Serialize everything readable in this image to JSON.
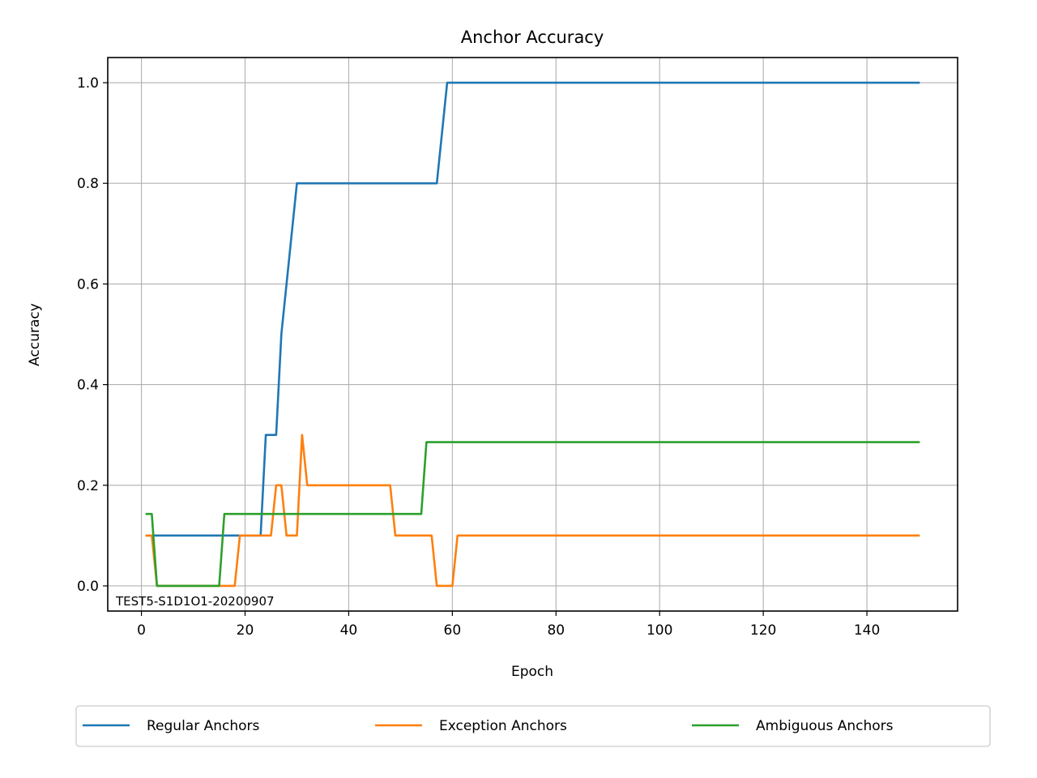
{
  "chart_data": {
    "type": "line",
    "title": "Anchor Accuracy",
    "xlabel": "Epoch",
    "ylabel": "Accuracy",
    "xlim": [
      -6.5,
      157.5
    ],
    "ylim": [
      -0.05,
      1.05
    ],
    "xticks": [
      0,
      20,
      40,
      60,
      80,
      100,
      120,
      140
    ],
    "yticks": [
      0.0,
      0.2,
      0.4,
      0.6,
      0.8,
      1.0
    ],
    "ytick_labels": [
      "0.0",
      "0.2",
      "0.4",
      "0.6",
      "0.8",
      "1.0"
    ],
    "grid": true,
    "legend_position": "below",
    "annotation": "TEST5-S1D1O1-20200907",
    "series": [
      {
        "name": "Regular Anchors",
        "color": "#1f77b4",
        "points": [
          [
            1,
            0.1
          ],
          [
            2,
            0.1
          ],
          [
            23,
            0.1
          ],
          [
            24,
            0.3
          ],
          [
            26,
            0.3
          ],
          [
            27,
            0.5
          ],
          [
            30,
            0.8
          ],
          [
            57,
            0.8
          ],
          [
            59,
            1.0
          ],
          [
            150,
            1.0
          ]
        ]
      },
      {
        "name": "Exception Anchors",
        "color": "#ff7f0e",
        "points": [
          [
            1,
            0.1
          ],
          [
            2,
            0.1
          ],
          [
            3,
            0.0
          ],
          [
            18,
            0.0
          ],
          [
            19,
            0.1
          ],
          [
            25,
            0.1
          ],
          [
            26,
            0.2
          ],
          [
            27,
            0.2
          ],
          [
            28,
            0.1
          ],
          [
            30,
            0.1
          ],
          [
            31,
            0.3
          ],
          [
            32,
            0.2
          ],
          [
            48,
            0.2
          ],
          [
            49,
            0.1
          ],
          [
            56,
            0.1
          ],
          [
            57,
            0.0
          ],
          [
            60,
            0.0
          ],
          [
            61,
            0.1
          ],
          [
            150,
            0.1
          ]
        ]
      },
      {
        "name": "Ambiguous Anchors",
        "color": "#2ca02c",
        "points": [
          [
            1,
            0.1429
          ],
          [
            2,
            0.1429
          ],
          [
            3,
            0.0
          ],
          [
            15,
            0.0
          ],
          [
            16,
            0.1429
          ],
          [
            54,
            0.1429
          ],
          [
            55,
            0.2857
          ],
          [
            150,
            0.2857
          ]
        ]
      }
    ]
  }
}
